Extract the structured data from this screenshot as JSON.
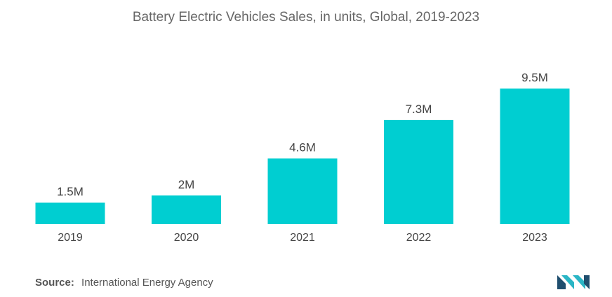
{
  "chart_data": {
    "type": "bar",
    "title": "Battery Electric Vehicles Sales, in units, Global, 2019-2023",
    "categories": [
      "2019",
      "2020",
      "2021",
      "2022",
      "2023"
    ],
    "values": [
      1.5,
      2,
      4.6,
      7.3,
      9.5
    ],
    "data_labels": [
      "1.5M",
      "2M",
      "4.6M",
      "7.3M",
      "9.5M"
    ],
    "unit": "M",
    "xlabel": "",
    "ylabel": "",
    "ylim": [
      0,
      10.2
    ],
    "grid": false,
    "bar_color": "#00ced1"
  },
  "source": {
    "label": "Source:",
    "text": "International Energy Agency"
  },
  "logo": {
    "icon": "mordor-logo-icon",
    "colors": [
      "#1f4e6e",
      "#2ab5c5"
    ]
  }
}
